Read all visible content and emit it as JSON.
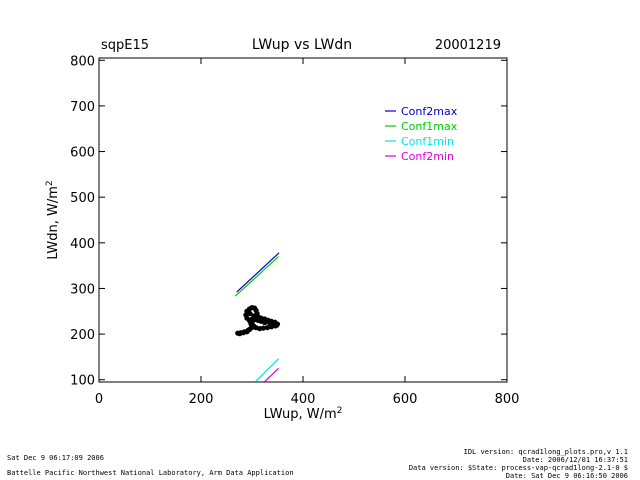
{
  "header": {
    "site": "sqpE15",
    "title": "LWup vs LWdn",
    "date": "20001219"
  },
  "footer": {
    "left_timestamp": "Sat Dec  9 06:17:09 2006",
    "left_org": "Battelle Pacific Northwest National Laboratory, Arm Data Application",
    "right_line1": "IDL version: qcrad1long_plots.pro,v 1.1",
    "right_line2": "Date: 2006/12/01 16:37:51",
    "right_line3": "Data version: $State: process-vap-qcrad1long-2.1-0 $",
    "right_line4": "Date: Sat Dec  9 06:16:50 2006"
  },
  "chart_data": {
    "type": "scatter",
    "title": "LWup vs LWdn",
    "xlabel": "LWup, W/m",
    "xlabel_sup": "2",
    "ylabel": "LWdn, W/m",
    "ylabel_sup": "2",
    "xlim": [
      0,
      800
    ],
    "ylim": [
      95,
      805
    ],
    "xticks": [
      0,
      200,
      400,
      600,
      800
    ],
    "yticks": [
      100,
      200,
      300,
      400,
      500,
      600,
      700,
      800
    ],
    "legend_position": "top-right",
    "lines": [
      {
        "name": "Conf2max",
        "color": "#0000cc",
        "points": [
          [
            270,
            292
          ],
          [
            353,
            378
          ]
        ]
      },
      {
        "name": "Conf1max",
        "color": "#00cc00",
        "points": [
          [
            267,
            283
          ],
          [
            352,
            370
          ]
        ]
      },
      {
        "name": "Conf1min",
        "color": "#00e5e5",
        "points": [
          [
            307,
            96
          ],
          [
            352,
            146
          ]
        ]
      },
      {
        "name": "Conf2min",
        "color": "#e000e0",
        "points": [
          [
            325,
            96
          ],
          [
            352,
            125
          ]
        ]
      }
    ],
    "scatter": {
      "color": "#000000",
      "points": [
        [
          272,
          202
        ],
        [
          278,
          203
        ],
        [
          285,
          205
        ],
        [
          292,
          208
        ],
        [
          298,
          213
        ],
        [
          303,
          218
        ],
        [
          300,
          225
        ],
        [
          295,
          230
        ],
        [
          290,
          235
        ],
        [
          288,
          242
        ],
        [
          290,
          250
        ],
        [
          295,
          255
        ],
        [
          300,
          258
        ],
        [
          305,
          257
        ],
        [
          308,
          252
        ],
        [
          310,
          245
        ],
        [
          312,
          238
        ],
        [
          318,
          235
        ],
        [
          325,
          233
        ],
        [
          332,
          230
        ],
        [
          338,
          228
        ],
        [
          345,
          226
        ],
        [
          350,
          222
        ],
        [
          346,
          218
        ],
        [
          338,
          216
        ],
        [
          330,
          214
        ],
        [
          322,
          213
        ],
        [
          315,
          212
        ],
        [
          308,
          214
        ],
        [
          302,
          218
        ],
        [
          298,
          222
        ],
        [
          296,
          228
        ],
        [
          300,
          233
        ],
        [
          306,
          232
        ],
        [
          312,
          230
        ],
        [
          318,
          228
        ],
        [
          325,
          225
        ],
        [
          335,
          223
        ],
        [
          342,
          221
        ],
        [
          348,
          219
        ],
        [
          300,
          215
        ],
        [
          295,
          210
        ],
        [
          290,
          205
        ],
        [
          283,
          203
        ],
        [
          276,
          201
        ],
        [
          304,
          240
        ],
        [
          309,
          236
        ],
        [
          296,
          245
        ]
      ]
    }
  }
}
